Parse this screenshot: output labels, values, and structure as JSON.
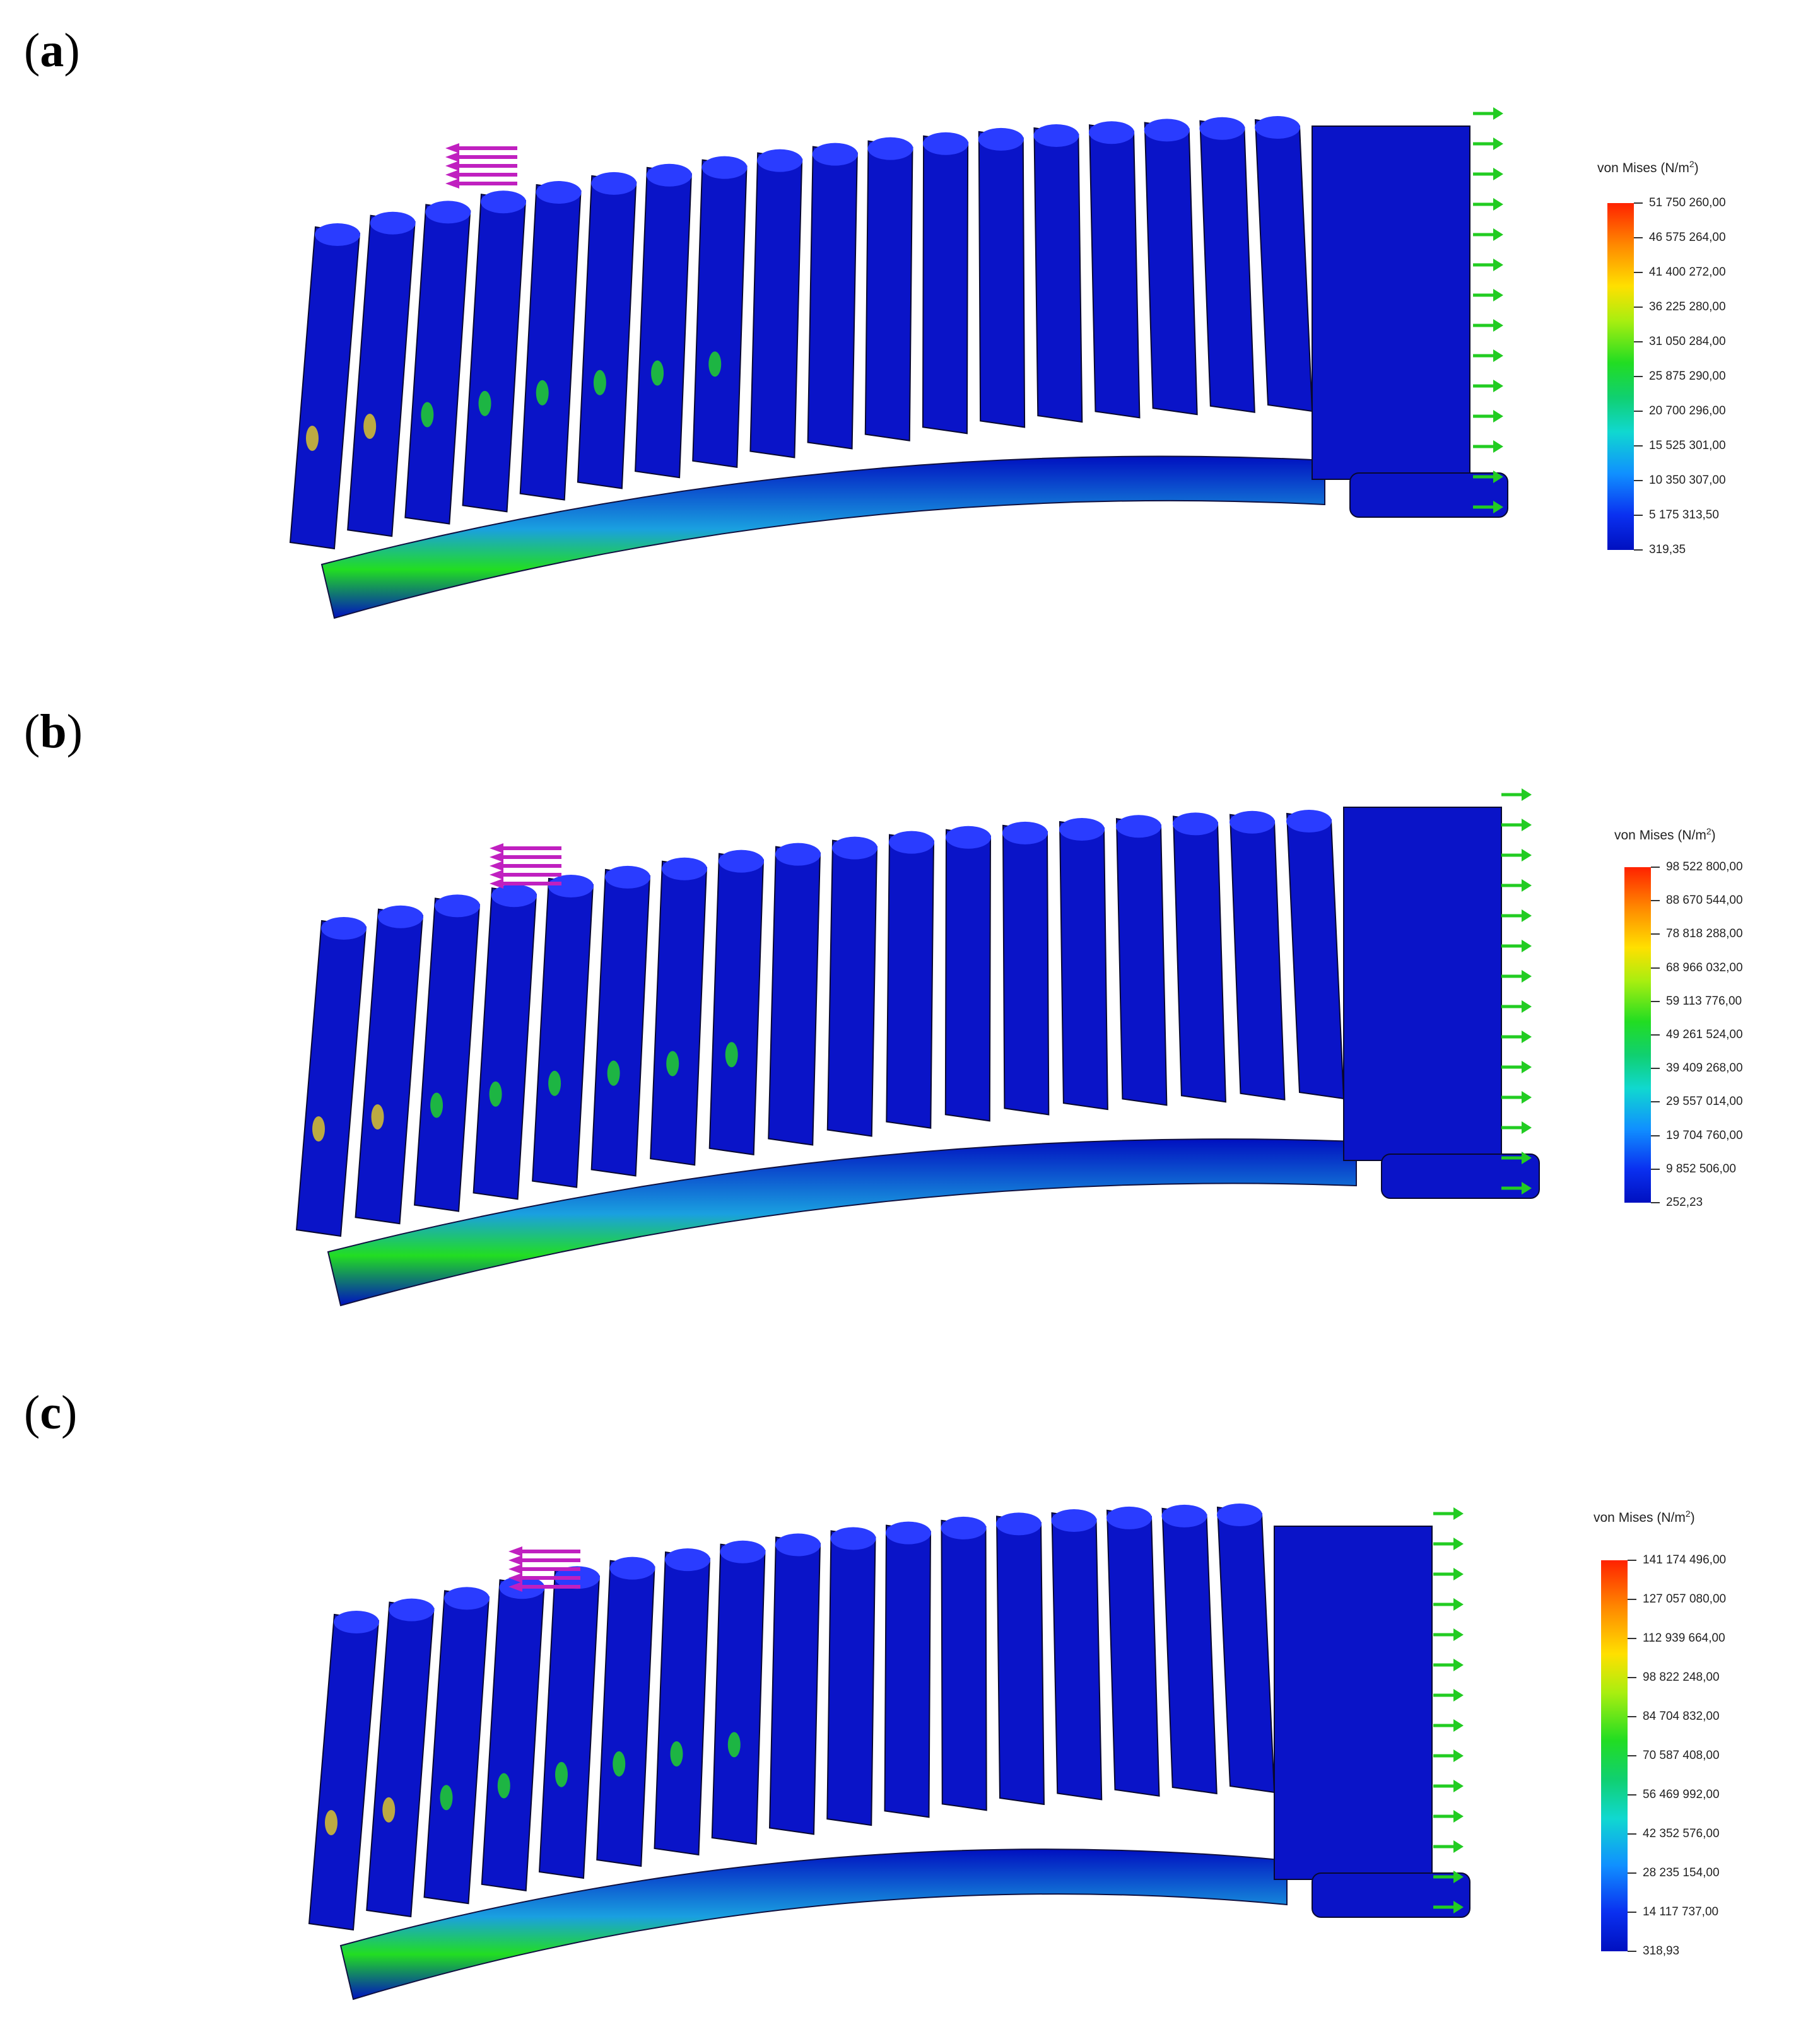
{
  "panels": [
    {
      "label": "a",
      "legend": {
        "title": "von Mises (N/m",
        "title_exp": "2",
        "title_close": ")",
        "ticks": [
          "51 750 260,00",
          "46 575 264,00",
          "41 400 272,00",
          "36 225 280,00",
          "31 050 284,00",
          "25 875 290,00",
          "20 700 296,00",
          "15 525 301,00",
          "10 350 307,00",
          "5 175 313,50",
          "319,35"
        ]
      }
    },
    {
      "label": "b",
      "legend": {
        "title": "von Mises (N/m",
        "title_exp": "2",
        "title_close": ")",
        "ticks": [
          "98 522 800,00",
          "88 670 544,00",
          "78 818 288,00",
          "68 966 032,00",
          "59 113 776,00",
          "49 261 524,00",
          "39 409 268,00",
          "29 557 014,00",
          "19 704 760,00",
          "9 852 506,00",
          "252,23"
        ]
      }
    },
    {
      "label": "c",
      "legend": {
        "title": "von Mises (N/m",
        "title_exp": "2",
        "title_close": ")",
        "ticks": [
          "141 174 496,00",
          "127 057 080,00",
          "112 939 664,00",
          "98 822 248,00",
          "84 704 832,00",
          "70 587 408,00",
          "56 469 992,00",
          "42 352 576,00",
          "28 235 154,00",
          "14 117 737,00",
          "318,93"
        ]
      }
    }
  ],
  "colors": {
    "model_blue": "#0a14c8",
    "model_highlight": "#2a3cff",
    "stress_high": "#ff2200",
    "stress_mid": "#22dd22",
    "stress_low": "#0010c0",
    "load_arrow": "#c020c0",
    "fixture_arrow": "#22cc22"
  },
  "icons": [
    "load-arrow-icon",
    "fixture-arrow-icon"
  ]
}
